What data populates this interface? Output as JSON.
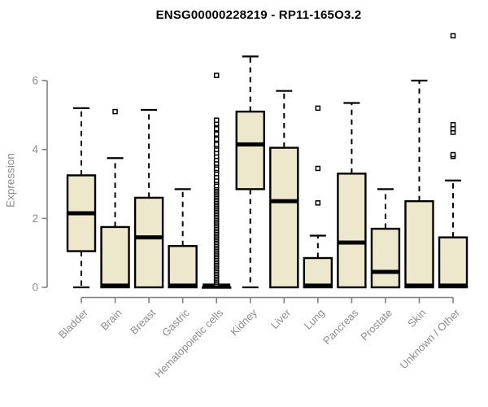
{
  "chart_data": {
    "type": "boxplot",
    "title": "ENSG00000228219 - RP11-165O3.2",
    "ylabel": "Expression",
    "xlabel": "",
    "ylim": [
      0,
      7.5
    ],
    "yticks": [
      0,
      2,
      4,
      6
    ],
    "grid": false,
    "legend": "none",
    "categories": [
      "Bladder",
      "Brain",
      "Breast",
      "Gastric",
      "Hematopoietic cells",
      "Kidney",
      "Liver",
      "Lung",
      "Pancreas",
      "Prostate",
      "Skin",
      "Unknown / Other"
    ],
    "series": [
      {
        "name": "Bladder",
        "whisker_low": 0,
        "q1": 1.05,
        "median": 2.15,
        "q3": 3.25,
        "whisker_high": 5.2,
        "outliers": []
      },
      {
        "name": "Brain",
        "whisker_low": 0,
        "q1": 0,
        "median": 0.05,
        "q3": 1.75,
        "whisker_high": 3.75,
        "outliers": [
          5.1
        ]
      },
      {
        "name": "Breast",
        "whisker_low": 0,
        "q1": 0,
        "median": 1.45,
        "q3": 2.6,
        "whisker_high": 5.15,
        "outliers": []
      },
      {
        "name": "Gastric",
        "whisker_low": 0,
        "q1": 0,
        "median": 0.05,
        "q3": 1.2,
        "whisker_high": 2.85,
        "outliers": []
      },
      {
        "name": "Hematopoietic cells",
        "whisker_low": 0,
        "q1": 0,
        "median": 0.05,
        "q3": 0,
        "whisker_high": 0,
        "outliers": [
          0.1,
          0.15,
          0.2,
          0.25,
          0.3,
          0.35,
          0.4,
          0.45,
          0.5,
          0.55,
          0.6,
          0.65,
          0.7,
          0.75,
          0.8,
          0.85,
          0.9,
          0.95,
          1.0,
          1.05,
          1.1,
          1.15,
          1.2,
          1.25,
          1.3,
          1.35,
          1.4,
          1.45,
          1.5,
          1.55,
          1.6,
          1.65,
          1.7,
          1.75,
          1.8,
          1.85,
          1.9,
          1.95,
          2.0,
          2.05,
          2.1,
          2.15,
          2.2,
          2.25,
          2.3,
          2.35,
          2.4,
          2.45,
          2.5,
          2.55,
          2.6,
          2.65,
          2.7,
          2.75,
          2.8,
          2.85,
          2.9,
          2.95,
          3.05,
          3.1,
          3.2,
          3.3,
          3.4,
          3.45,
          3.55,
          3.6,
          3.7,
          3.8,
          3.9,
          4.0,
          4.1,
          4.15,
          4.3,
          4.45,
          4.6,
          4.75,
          4.85,
          6.15
        ]
      },
      {
        "name": "Kidney",
        "whisker_low": 0,
        "q1": 2.85,
        "median": 4.15,
        "q3": 5.1,
        "whisker_high": 6.7,
        "outliers": []
      },
      {
        "name": "Liver",
        "whisker_low": 0,
        "q1": 0,
        "median": 2.5,
        "q3": 4.05,
        "whisker_high": 5.7,
        "outliers": []
      },
      {
        "name": "Lung",
        "whisker_low": 0,
        "q1": 0,
        "median": 0.05,
        "q3": 0.85,
        "whisker_high": 1.5,
        "outliers": [
          2.45,
          3.45,
          5.2
        ]
      },
      {
        "name": "Pancreas",
        "whisker_low": 0,
        "q1": 0,
        "median": 1.3,
        "q3": 3.3,
        "whisker_high": 5.35,
        "outliers": []
      },
      {
        "name": "Prostate",
        "whisker_low": 0,
        "q1": 0,
        "median": 0.45,
        "q3": 1.7,
        "whisker_high": 2.85,
        "outliers": []
      },
      {
        "name": "Skin",
        "whisker_low": 0,
        "q1": 0,
        "median": 0.05,
        "q3": 2.5,
        "whisker_high": 6.0,
        "outliers": []
      },
      {
        "name": "Unknown / Other",
        "whisker_low": 0,
        "q1": 0,
        "median": 0.05,
        "q3": 1.45,
        "whisker_high": 3.1,
        "outliers": [
          3.8,
          3.85,
          4.5,
          4.6,
          4.72,
          7.3
        ]
      }
    ],
    "style": {
      "box_fill": "#EDE8CC",
      "box_stroke": "#000000",
      "median_color": "#000000",
      "whisker_color": "#000000",
      "outlier_color": "#000000",
      "axis_color": "#808080",
      "tick_label_color": "#8c8c8c",
      "title_color": "#000000",
      "background": "#ffffff"
    }
  }
}
